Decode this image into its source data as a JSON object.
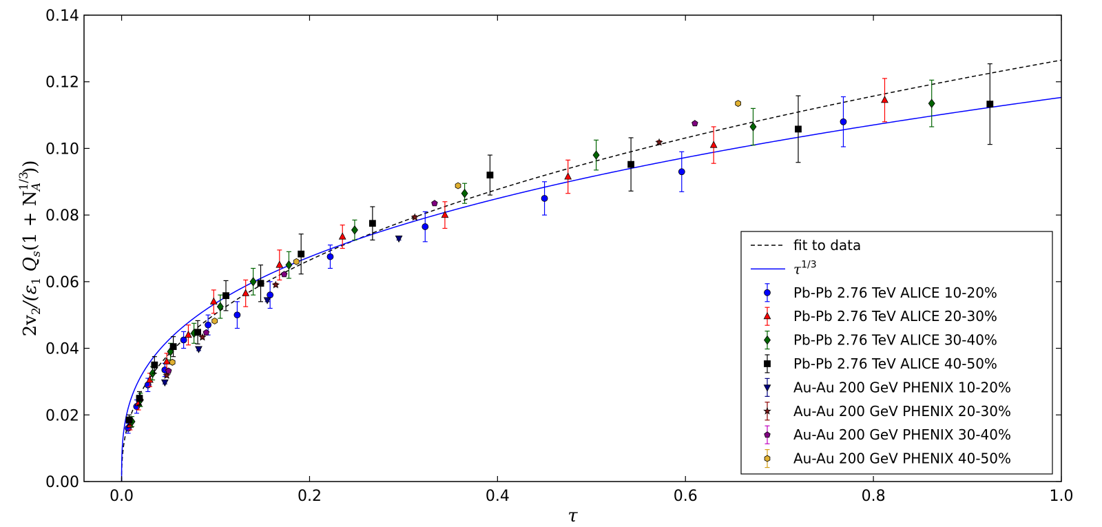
{
  "chart_data": {
    "type": "scatter",
    "xlabel": "τ",
    "ylabel": {
      "prefix": "2v",
      "prefix_sub": "2",
      "mid": "/(ε",
      "mid_sub": "1",
      "q": " Q",
      "q_sub": "s",
      "paren": "(1 + N",
      "n_sub": "A",
      "n_sup": "1/3",
      "close": "))"
    },
    "xlim": [
      -0.04,
      1.0
    ],
    "ylim": [
      0.0,
      0.14
    ],
    "xticks": [
      "0.0",
      "0.2",
      "0.4",
      "0.6",
      "0.8",
      "1.0"
    ],
    "yticks": [
      "0.00",
      "0.02",
      "0.04",
      "0.06",
      "0.08",
      "0.10",
      "0.12",
      "0.14"
    ],
    "grid": false,
    "legend_position": "bottom-right",
    "lines": [
      {
        "name": "fit to data",
        "label": "fit to data",
        "style": "dashed",
        "color": "#000000",
        "formula": "0.1265*tau^0.4"
      },
      {
        "name": "tau13",
        "label_base": "τ",
        "label_sup": "1/3",
        "style": "solid",
        "color": "#0000ff",
        "formula": "0.1153*tau^(1/3)"
      }
    ],
    "series": [
      {
        "name": "Pb-Pb 2.76 TeV ALICE 10-20%",
        "marker": "circle",
        "color": "#0000ff",
        "ecolor": "#0000ff",
        "points": [
          [
            0.007,
            0.016,
            0.0015
          ],
          [
            0.016,
            0.0225,
            0.002
          ],
          [
            0.028,
            0.029,
            0.002
          ],
          [
            0.046,
            0.0335,
            0.002
          ],
          [
            0.066,
            0.0425,
            0.0025
          ],
          [
            0.092,
            0.047,
            0.003
          ],
          [
            0.123,
            0.05,
            0.004
          ],
          [
            0.158,
            0.056,
            0.004
          ],
          [
            0.222,
            0.0675,
            0.0035
          ],
          [
            0.323,
            0.0765,
            0.0045
          ],
          [
            0.45,
            0.085,
            0.005
          ],
          [
            0.596,
            0.093,
            0.006
          ],
          [
            0.768,
            0.108,
            0.0075
          ]
        ]
      },
      {
        "name": "Pb-Pb 2.76 TeV ALICE 20-30%",
        "marker": "triangle",
        "color": "#ff0000",
        "ecolor": "#ff0000",
        "points": [
          [
            0.009,
            0.017,
            0.0015
          ],
          [
            0.018,
            0.0235,
            0.002
          ],
          [
            0.03,
            0.0305,
            0.002
          ],
          [
            0.048,
            0.036,
            0.0025
          ],
          [
            0.071,
            0.044,
            0.003
          ],
          [
            0.098,
            0.054,
            0.0035
          ],
          [
            0.132,
            0.0565,
            0.004
          ],
          [
            0.168,
            0.065,
            0.0045
          ],
          [
            0.235,
            0.0735,
            0.0035
          ],
          [
            0.344,
            0.08,
            0.004
          ],
          [
            0.475,
            0.0915,
            0.005
          ],
          [
            0.63,
            0.101,
            0.0055
          ],
          [
            0.812,
            0.1145,
            0.0065
          ]
        ]
      },
      {
        "name": "Pb-Pb 2.76 TeV ALICE 30-40%",
        "marker": "diamond",
        "color": "#006400",
        "ecolor": "#006400",
        "points": [
          [
            0.011,
            0.018,
            0.0015
          ],
          [
            0.02,
            0.0245,
            0.002
          ],
          [
            0.033,
            0.0325,
            0.002
          ],
          [
            0.052,
            0.039,
            0.0025
          ],
          [
            0.077,
            0.0445,
            0.003
          ],
          [
            0.105,
            0.0525,
            0.0035
          ],
          [
            0.14,
            0.06,
            0.004
          ],
          [
            0.178,
            0.065,
            0.004
          ],
          [
            0.248,
            0.0755,
            0.003
          ],
          [
            0.365,
            0.0865,
            0.003
          ],
          [
            0.505,
            0.098,
            0.0045
          ],
          [
            0.672,
            0.1065,
            0.0055
          ],
          [
            0.862,
            0.1135,
            0.007
          ]
        ]
      },
      {
        "name": "Pb-Pb 2.76 TeV ALICE 40-50%",
        "marker": "square",
        "color": "#000000",
        "ecolor": "#000000",
        "points": [
          [
            0.008,
            0.0185,
            0.0015
          ],
          [
            0.019,
            0.025,
            0.002
          ],
          [
            0.035,
            0.035,
            0.0025
          ],
          [
            0.055,
            0.0405,
            0.003
          ],
          [
            0.081,
            0.0448,
            0.0035
          ],
          [
            0.111,
            0.0558,
            0.0045
          ],
          [
            0.148,
            0.0595,
            0.0055
          ],
          [
            0.191,
            0.0683,
            0.006
          ],
          [
            0.267,
            0.0775,
            0.005
          ],
          [
            0.392,
            0.092,
            0.006
          ],
          [
            0.542,
            0.0952,
            0.008
          ],
          [
            0.72,
            0.1058,
            0.01
          ],
          [
            0.924,
            0.1133,
            0.0121
          ]
        ]
      },
      {
        "name": "Au-Au 200 GeV PHENIX 10-20%",
        "marker": "triangle-down",
        "color": "#000080",
        "ecolor": "#000080",
        "points": [
          [
            0.046,
            0.0298,
            0.0005
          ],
          [
            0.082,
            0.0398,
            0.0005
          ],
          [
            0.155,
            0.0545,
            0.0005
          ],
          [
            0.295,
            0.073,
            0.0005
          ]
        ]
      },
      {
        "name": "Au-Au 200 GeV PHENIX 20-30%",
        "marker": "star",
        "color": "#7a1a1a",
        "ecolor": "#8b0000",
        "points": [
          [
            0.048,
            0.0318,
            0.0005
          ],
          [
            0.086,
            0.0433,
            0.0005
          ],
          [
            0.164,
            0.059,
            0.0005
          ],
          [
            0.312,
            0.0793,
            0.0005
          ],
          [
            0.572,
            0.1018,
            0.0005
          ]
        ]
      },
      {
        "name": "Au-Au 200 GeV PHENIX 30-40%",
        "marker": "pentagon",
        "color": "#800080",
        "ecolor": "#c000c0",
        "points": [
          [
            0.05,
            0.0332,
            0.0005
          ],
          [
            0.09,
            0.0447,
            0.0005
          ],
          [
            0.173,
            0.0622,
            0.0005
          ],
          [
            0.333,
            0.0835,
            0.0005
          ],
          [
            0.61,
            0.1075,
            0.0005
          ]
        ]
      },
      {
        "name": "Au-Au 200 GeV PHENIX 40-50%",
        "marker": "hexagon",
        "color": "#e0b030",
        "ecolor": "#d4a017",
        "points": [
          [
            0.054,
            0.0358,
            0.0005
          ],
          [
            0.099,
            0.0482,
            0.0005
          ],
          [
            0.186,
            0.066,
            0.0005
          ],
          [
            0.358,
            0.0888,
            0.0005
          ],
          [
            0.656,
            0.1135,
            0.0005
          ]
        ]
      }
    ]
  }
}
